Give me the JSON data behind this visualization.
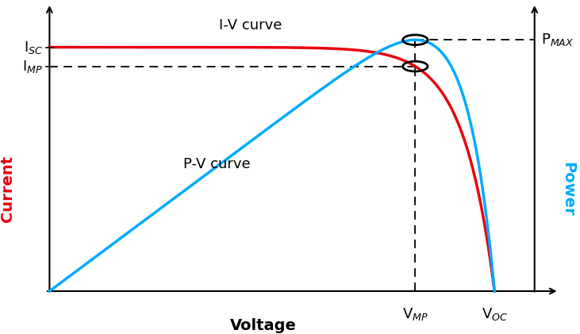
{
  "background_color": "#ffffff",
  "iv_color": "#e8000d",
  "pv_color": "#00aaff",
  "xlabel": "Voltage",
  "ylabel_left": "Current",
  "ylabel_right": "Power",
  "label_iv": "I-V curve",
  "label_pv": "P-V curve",
  "isc_label": "I$_{SC}$",
  "imp_label": "I$_{MP}$",
  "pmax_label": "P$_{MAX}$",
  "vmp_label": "V$_{MP}$",
  "voc_label": "V$_{OC}$",
  "Isc": 0.87,
  "Imp": 0.76,
  "Vmp": 0.77,
  "Voc": 1.0,
  "figsize": [
    7.31,
    4.21
  ],
  "dpi": 100,
  "curve_lw": 2.5,
  "Vt": 0.07
}
